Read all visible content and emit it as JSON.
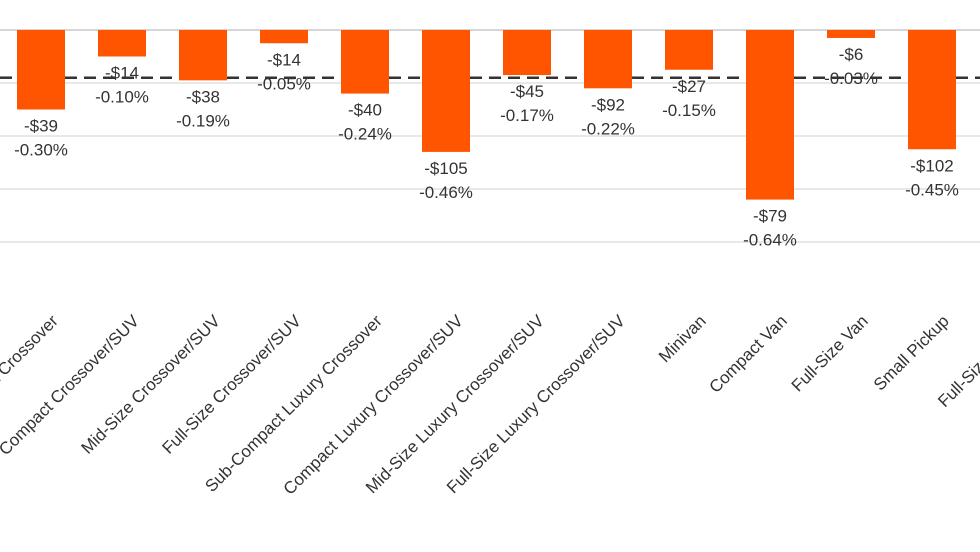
{
  "chart_data": {
    "type": "bar",
    "title": "",
    "xlabel": "",
    "ylabel": "",
    "ylim": [
      -0.8,
      0
    ],
    "grid": true,
    "categories": [
      "Compact Crossover",
      "Compact Crossover/SUV",
      "Mid-Size Crossover/SUV",
      "Full-Size Crossover/SUV",
      "Sub-Compact Luxury Crossover",
      "Compact Luxury Crossover/SUV",
      "Mid-Size Luxury Crossover/SUV",
      "Full-Size Luxury Crossover/SUV",
      "Minivan",
      "Compact Van",
      "Full-Size Van",
      "Small Pickup",
      "Full-Size Pickup"
    ],
    "values": [
      -0.3,
      -0.1,
      -0.19,
      -0.05,
      -0.24,
      -0.46,
      -0.17,
      -0.22,
      -0.15,
      -0.64,
      -0.03,
      -0.45,
      null
    ],
    "dollar_labels": [
      "-$39",
      "-$14",
      "-$38",
      "-$14",
      "-$40",
      "-$105",
      "-$45",
      "-$92",
      "-$27",
      "-$79",
      "-$6",
      "-$102",
      ""
    ],
    "percent_labels": [
      "-0.30%",
      "-0.10%",
      "-0.19%",
      "-0.05%",
      "-0.24%",
      "-0.46%",
      "-0.17%",
      "-0.22%",
      "-0.15%",
      "-0.64%",
      "-0.03%",
      "-0.45%",
      ""
    ],
    "reference_line_value": -0.18,
    "colors": {
      "bar": "#ff5500",
      "reference_line": "#333333",
      "grid": "#e0e0e0"
    }
  }
}
